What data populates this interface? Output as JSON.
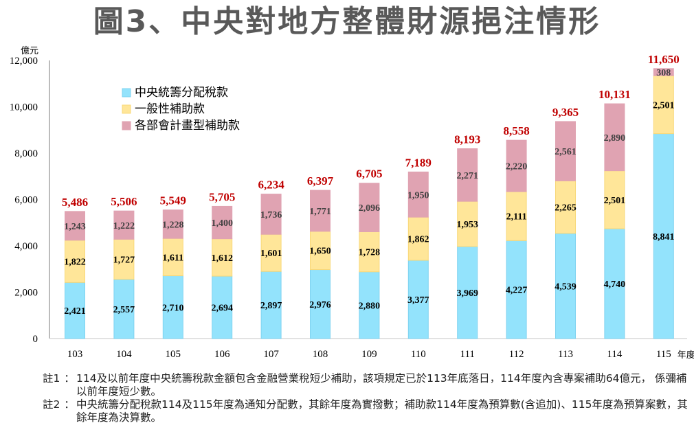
{
  "title": "圖3、中央對地方整體財源挹注情形",
  "chart_data": {
    "type": "bar",
    "stacked": true,
    "title": "圖3、中央對地方整體財源挹注情形",
    "ylabel": "億元",
    "xlabel": "年度",
    "ylim": [
      0,
      12000
    ],
    "yticks": [
      0,
      2000,
      4000,
      6000,
      8000,
      10000,
      12000
    ],
    "ytick_labels": [
      "0",
      "2,000",
      "4,000",
      "6,000",
      "8,000",
      "10,000",
      "12,000"
    ],
    "grid": false,
    "legend_position": "top-left",
    "categories": [
      "103",
      "104",
      "105",
      "106",
      "107",
      "108",
      "109",
      "110",
      "111",
      "112",
      "113",
      "114",
      "115"
    ],
    "series": [
      {
        "name": "中央統籌分配稅款",
        "color": "#93E3FC",
        "border": "#7FD3F0",
        "label_color": "#000000",
        "values": [
          2421,
          2557,
          2710,
          2694,
          2897,
          2976,
          2880,
          3377,
          3969,
          4227,
          4539,
          4740,
          8841
        ],
        "labels": [
          "2,421",
          "2,557",
          "2,710",
          "2,694",
          "2,897",
          "2,976",
          "2,880",
          "3,377",
          "3,969",
          "4,227",
          "4,539",
          "4,740",
          "8,841"
        ]
      },
      {
        "name": "一般性補助款",
        "color": "#FFE699",
        "border": "#F8D878",
        "label_color": "#000000",
        "values": [
          1822,
          1727,
          1611,
          1612,
          1601,
          1650,
          1728,
          1862,
          1953,
          2111,
          2265,
          2501,
          2501
        ],
        "labels": [
          "1,822",
          "1,727",
          "1,611",
          "1,612",
          "1,601",
          "1,650",
          "1,728",
          "1,862",
          "1,953",
          "2,111",
          "2,265",
          "2,501",
          "2,501"
        ]
      },
      {
        "name": "各部會計畫型補助款",
        "color": "#E0A3B2",
        "border": "#E0A3B2",
        "label_color": "#404040",
        "values": [
          1243,
          1222,
          1228,
          1400,
          1736,
          1771,
          2096,
          1950,
          2271,
          2220,
          2561,
          2890,
          308
        ],
        "labels": [
          "1,243",
          "1,222",
          "1,228",
          "1,400",
          "1,736",
          "1,771",
          "2,096",
          "1,950",
          "2,271",
          "2,220",
          "2,561",
          "2,890",
          "308"
        ]
      }
    ],
    "totals": [
      5486,
      5506,
      5549,
      5705,
      6234,
      6397,
      6705,
      7189,
      8193,
      8558,
      9365,
      10131,
      11650
    ],
    "total_labels": [
      "5,486",
      "5,506",
      "5,549",
      "5,705",
      "6,234",
      "6,397",
      "6,705",
      "7,189",
      "8,193",
      "8,558",
      "9,365",
      "10,131",
      "11,650"
    ],
    "total_label_color": "#C00000",
    "axis_color": "#A6A6A6"
  },
  "notes": [
    {
      "key": "註1",
      "sep": "：",
      "text": "114及以前年度中央統籌稅款金額包含金融營業稅短少補助，該項規定已於113年底落日，114年度內含專案補助64億元， 係彌補以前年度短少數。"
    },
    {
      "key": "註2",
      "sep": "：",
      "text": "中央統籌分配稅款114及115年度為通知分配數，其餘年度為實撥數；補助款114年度為預算數(含追加)、115年度為預算案數，其餘年度為決算數。"
    }
  ]
}
